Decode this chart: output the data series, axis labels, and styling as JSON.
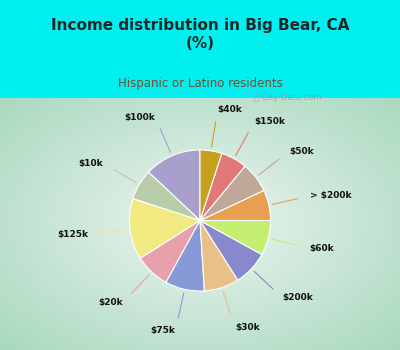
{
  "title": "Income distribution in Big Bear, CA\n(%)",
  "subtitle": "Hispanic or Latino residents",
  "title_color": "#1a2a2a",
  "subtitle_color": "#7a4a2a",
  "bg_top_color": "#00EFEF",
  "bg_chart_outer": "#a8d8c0",
  "bg_chart_inner": "#e8f4f0",
  "labels": [
    "$100k",
    "$10k",
    "$125k",
    "$20k",
    "$75k",
    "$30k",
    "$200k",
    "$60k",
    "> $200k",
    "$50k",
    "$150k",
    "$40k"
  ],
  "values": [
    13,
    7,
    14,
    8,
    9,
    8,
    8,
    8,
    7,
    7,
    6,
    5
  ],
  "colors": [
    "#a89fcc",
    "#b8ccaa",
    "#f0ea80",
    "#e8a0aa",
    "#8899d8",
    "#e8c088",
    "#8888cc",
    "#c4ee70",
    "#e8a050",
    "#c0a898",
    "#e07878",
    "#c8a020"
  ],
  "watermark": "ⓘ City-Data.com",
  "startangle": 90
}
